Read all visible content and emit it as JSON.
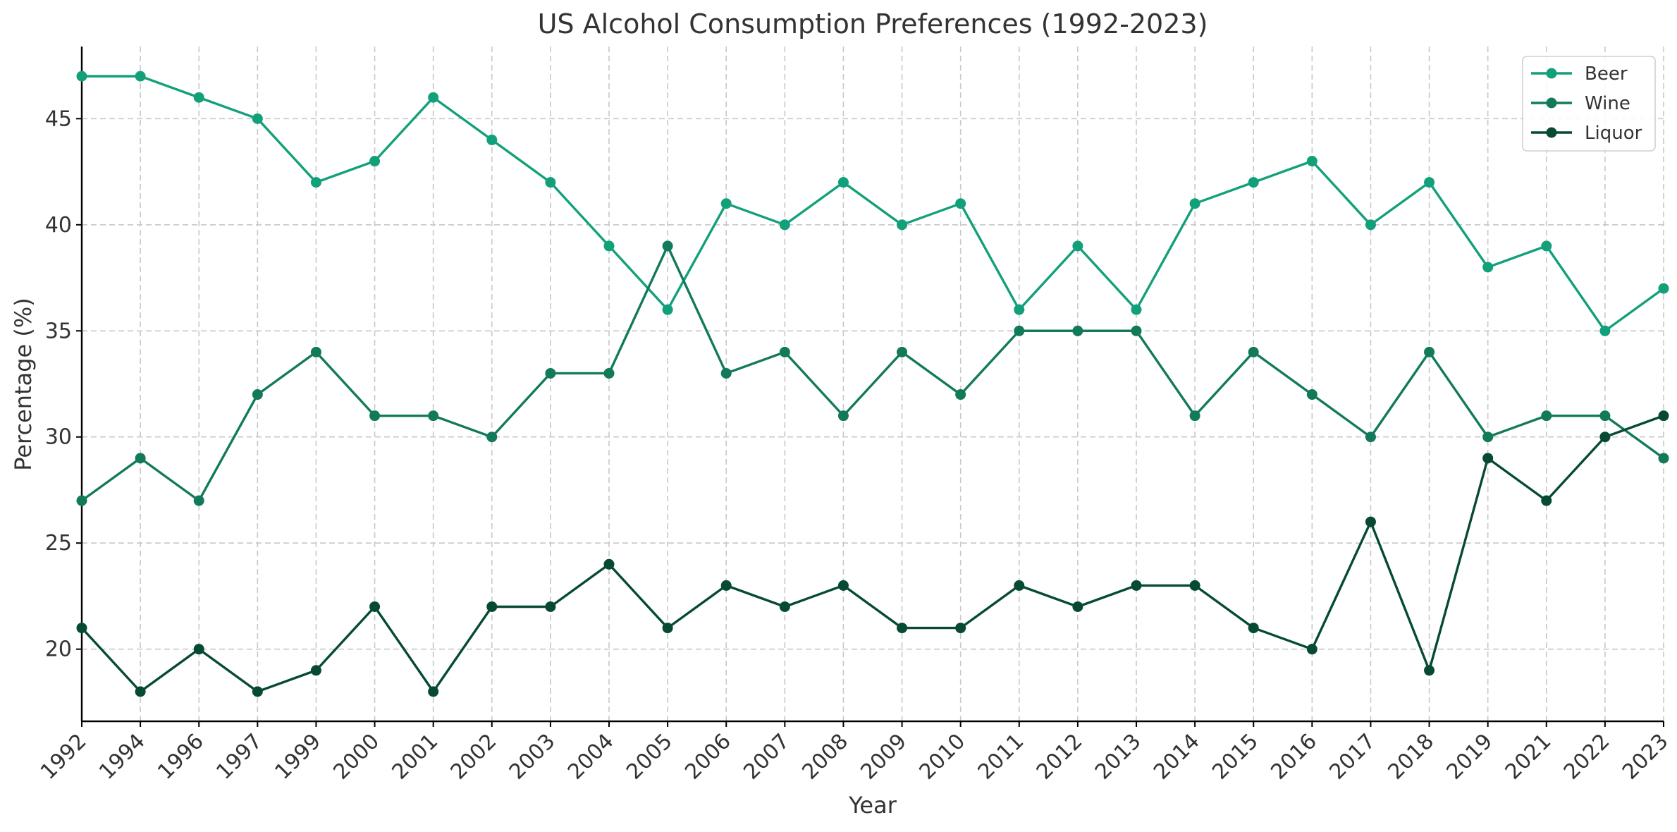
{
  "chart_data": {
    "type": "line",
    "title": "US Alcohol Consumption Preferences (1992-2023)",
    "xlabel": "Year",
    "ylabel": "Percentage (%)",
    "categories": [
      "1992",
      "1994",
      "1996",
      "1997",
      "1999",
      "2000",
      "2001",
      "2002",
      "2003",
      "2004",
      "2005",
      "2006",
      "2007",
      "2008",
      "2009",
      "2010",
      "2011",
      "2012",
      "2013",
      "2014",
      "2015",
      "2016",
      "2017",
      "2018",
      "2019",
      "2021",
      "2022",
      "2023"
    ],
    "yticks": [
      20,
      25,
      30,
      35,
      40,
      45
    ],
    "ylim": [
      16.6,
      48.4
    ],
    "grid": true,
    "legend_position": "top-right",
    "series": [
      {
        "name": "Beer",
        "color": "#12a07a",
        "values": [
          47,
          47,
          46,
          45,
          42,
          43,
          46,
          44,
          42,
          39,
          36,
          41,
          40,
          42,
          40,
          41,
          36,
          39,
          36,
          41,
          42,
          43,
          40,
          42,
          38,
          39,
          35,
          37
        ]
      },
      {
        "name": "Wine",
        "color": "#127a5b",
        "values": [
          27,
          29,
          27,
          32,
          34,
          31,
          31,
          30,
          33,
          33,
          39,
          33,
          34,
          31,
          34,
          32,
          35,
          35,
          35,
          31,
          34,
          32,
          30,
          34,
          30,
          31,
          31,
          29
        ]
      },
      {
        "name": "Liquor",
        "color": "#064a36",
        "values": [
          21,
          18,
          20,
          18,
          19,
          22,
          18,
          22,
          22,
          24,
          21,
          23,
          22,
          23,
          21,
          21,
          23,
          22,
          23,
          23,
          21,
          20,
          26,
          19,
          29,
          27,
          30,
          31
        ]
      }
    ]
  }
}
